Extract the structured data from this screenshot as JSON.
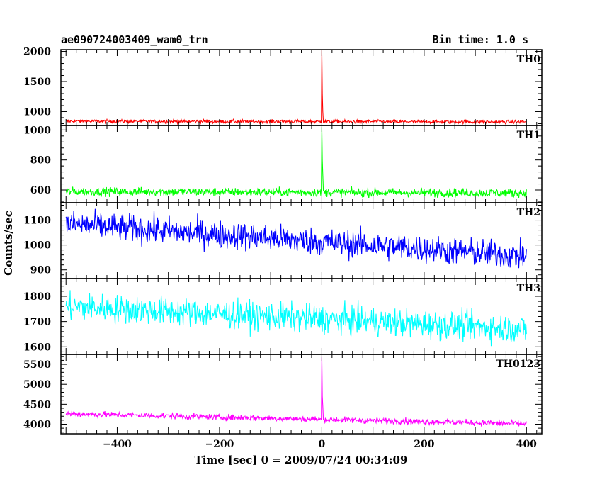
{
  "chart_data": {
    "type": "line",
    "title": "ae090724003409_wam0_trn",
    "bin_time": "Bin time: 1.0 s",
    "xlabel": "Time [sec] 0 = 2009/07/24 00:34:09",
    "ylabel": "Counts/sec",
    "xlim": [
      -510,
      430
    ],
    "x_ticks": [
      -400,
      -200,
      0,
      200,
      400
    ],
    "grid": false,
    "panels": [
      {
        "name": "TH0",
        "color": "#ff0000",
        "ylim": [
          770,
          2030
        ],
        "y_ticks": [
          1000,
          1500,
          2000
        ],
        "baseline_start": 840,
        "baseline_end": 830,
        "noise": 28,
        "spike_x": 0,
        "spike_peak": 2020,
        "spike_decay": [
          1300,
          1000
        ]
      },
      {
        "name": "TH1",
        "color": "#00ff00",
        "ylim": [
          515,
          1030
        ],
        "y_ticks": [
          600,
          800,
          1000
        ],
        "baseline_start": 590,
        "baseline_end": 580,
        "noise": 28,
        "spike_x": 0,
        "spike_peak": 1020,
        "spike_decay": [
          800,
          700
        ]
      },
      {
        "name": "TH2",
        "color": "#0000ff",
        "ylim": [
          865,
          1170
        ],
        "y_ticks": [
          900,
          1000,
          1100
        ],
        "baseline_start": 1085,
        "baseline_end": 955,
        "noise": 55,
        "spike_x": null,
        "spike_peak": null,
        "spike_decay": []
      },
      {
        "name": "TH3",
        "color": "#00ffff",
        "ylim": [
          1570,
          1870
        ],
        "y_ticks": [
          1600,
          1700,
          1800
        ],
        "baseline_start": 1760,
        "baseline_end": 1670,
        "noise": 55,
        "spike_x": null,
        "spike_peak": null,
        "spike_decay": []
      },
      {
        "name": "TH0123",
        "color": "#ff00ff",
        "ylim": [
          3760,
          5750
        ],
        "y_ticks": [
          4000,
          4500,
          5000,
          5500
        ],
        "baseline_start": 4260,
        "baseline_end": 4010,
        "noise": 75,
        "spike_x": 0,
        "spike_peak": 5700,
        "spike_decay": [
          4700,
          4450
        ]
      }
    ]
  }
}
